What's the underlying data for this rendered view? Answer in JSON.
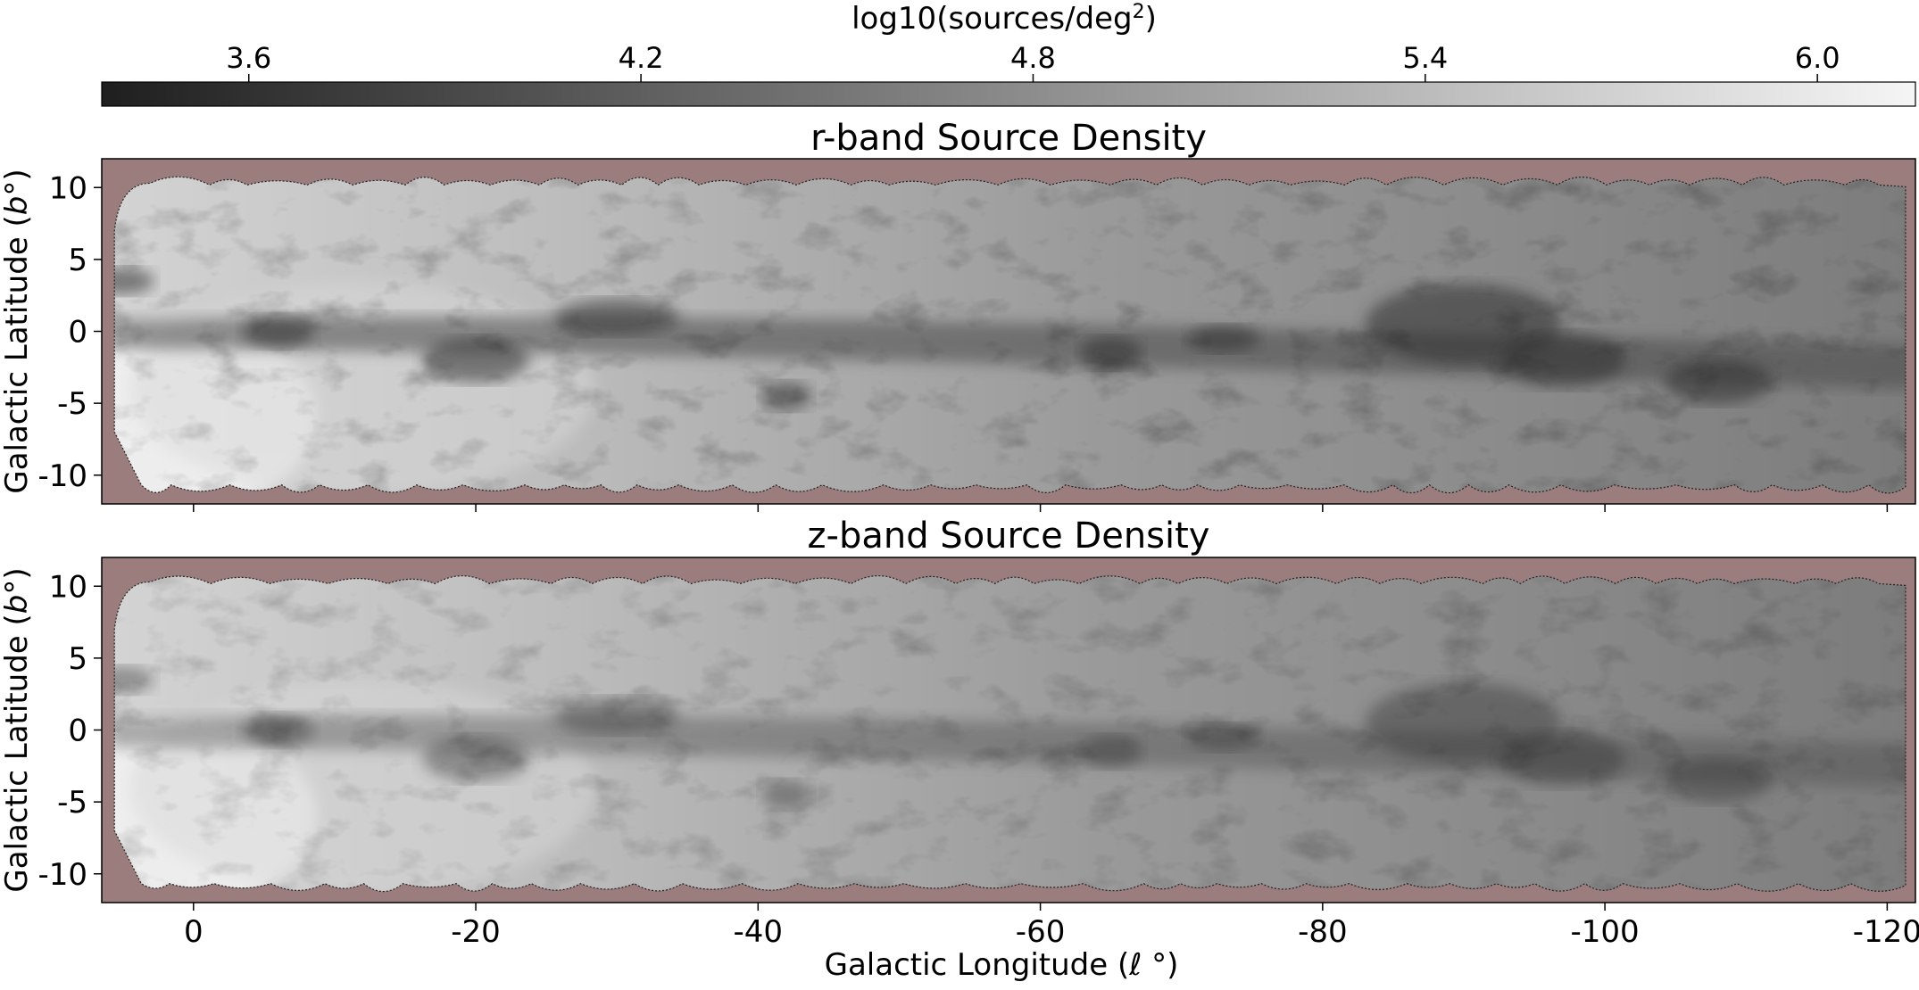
{
  "figure": {
    "colorbar": {
      "label_prefix": "log10(sources/deg",
      "label_sup": "2",
      "label_suffix": ")",
      "range": [
        3.375,
        6.15
      ],
      "ticks": [
        3.6,
        4.2,
        4.8,
        5.4,
        6.0
      ],
      "tick_labels": [
        "3.6",
        "4.2",
        "4.8",
        "5.4",
        "6.0"
      ],
      "gradient_start": "#1f1f1f",
      "gradient_end": "#f5f5f5"
    },
    "mask_color": "#9b7d7d"
  },
  "chart_data": [
    {
      "type": "heatmap",
      "title": "r-band Source Density",
      "ylabel_text": "Galactic Latitude (",
      "ylabel_var": "b",
      "ylabel_end": "°)",
      "xlim": [
        6.5,
        -122
      ],
      "ylim": [
        -12,
        12
      ],
      "yticks": [
        10,
        5,
        0,
        -5,
        -10
      ],
      "ytick_labels": [
        "10",
        "5",
        "0",
        "-5",
        "-10"
      ],
      "xticks": [
        0,
        -20,
        -40,
        -60,
        -80,
        -100,
        -120
      ],
      "plane_core_darkness": 0.55
    },
    {
      "type": "heatmap",
      "title": "z-band Source Density",
      "ylabel_text": "Galactic Latitude (",
      "ylabel_var": "b",
      "ylabel_end": "°)",
      "xlabel_text": "Galactic Longitude (",
      "xlabel_var": "ℓ",
      "xlabel_end": "°)",
      "xlim": [
        6.5,
        -122
      ],
      "ylim": [
        -12,
        12
      ],
      "yticks": [
        10,
        5,
        0,
        -5,
        -10
      ],
      "ytick_labels": [
        "10",
        "5",
        "0",
        "-5",
        "-10"
      ],
      "xticks": [
        0,
        -20,
        -40,
        -60,
        -80,
        -100,
        -120
      ],
      "xtick_labels": [
        "0",
        "-20",
        "-40",
        "-60",
        "-80",
        "-100",
        "-120"
      ],
      "plane_core_darkness": 0.4
    }
  ]
}
